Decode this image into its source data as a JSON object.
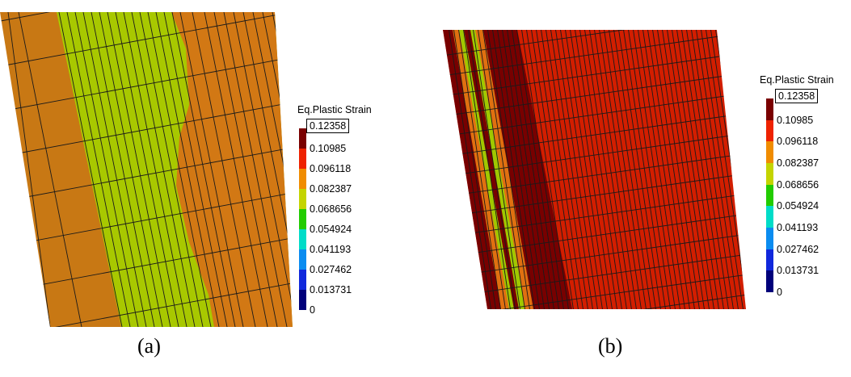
{
  "panels": [
    {
      "id": "a",
      "caption": "(a)",
      "legend": {
        "title": "Eq.Plastic Strain",
        "max": "0.12358",
        "ticks": [
          "0.10985",
          "0.096118",
          "0.082387",
          "0.068656",
          "0.054924",
          "0.041193",
          "0.027462",
          "0.013731",
          "0"
        ]
      }
    },
    {
      "id": "b",
      "caption": "(b)",
      "legend": {
        "title": "Eq.Plastic Strain",
        "max": "0.12358",
        "ticks": [
          "0.10985",
          "0.096118",
          "0.082387",
          "0.068656",
          "0.054924",
          "0.041193",
          "0.027462",
          "0.013731",
          "0"
        ]
      }
    }
  ],
  "colormap": [
    "#7a0000",
    "#ee2200",
    "#f08c00",
    "#c4d400",
    "#22cc00",
    "#00dcc8",
    "#0a8cf0",
    "#1028dc",
    "#00007a"
  ],
  "mesh_colors": {
    "a_outer": "#c87814",
    "a_band": "#a8c800",
    "a_right": "#d27814",
    "b_dark": "#780000",
    "b_red": "#d21e00",
    "b_yellow": "#a0c800",
    "b_orange": "#e07010"
  }
}
